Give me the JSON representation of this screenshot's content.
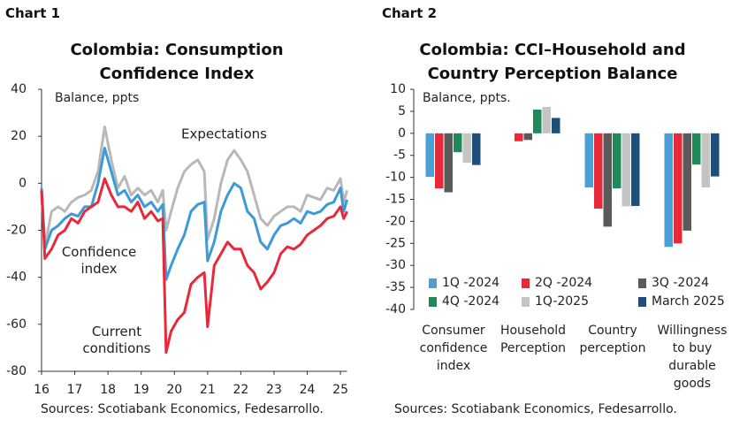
{
  "chart_data": [
    {
      "type": "line",
      "heading": "Chart 1",
      "title": "Colombia: Consumption Confidence Index",
      "y_label": "Balance, ppts",
      "source": "Sources: Scotiabank Economics, Fedesarrollo.",
      "x": [
        16.0,
        16.1,
        16.3,
        16.5,
        16.7,
        16.9,
        17.1,
        17.3,
        17.5,
        17.7,
        17.9,
        18.1,
        18.3,
        18.5,
        18.7,
        18.9,
        19.1,
        19.3,
        19.5,
        19.65,
        19.75,
        19.9,
        20.1,
        20.3,
        20.5,
        20.7,
        20.9,
        21.0,
        21.2,
        21.4,
        21.6,
        21.8,
        22.0,
        22.2,
        22.4,
        22.6,
        22.8,
        23.0,
        23.2,
        23.4,
        23.6,
        23.8,
        24.0,
        24.2,
        24.4,
        24.6,
        24.8,
        25.0,
        25.1,
        25.2
      ],
      "xlim": [
        16,
        25.2
      ],
      "xticks": [
        16,
        17,
        18,
        19,
        20,
        21,
        22,
        23,
        24,
        25
      ],
      "ylim": [
        -80,
        40
      ],
      "yticks": [
        -80,
        -60,
        -40,
        -20,
        0,
        20,
        40
      ],
      "series": [
        {
          "name": "Expectations",
          "color": "#b8b8b8",
          "values": [
            -2,
            -27,
            -12,
            -10,
            -12,
            -8,
            -6,
            -5,
            -3,
            5,
            24,
            10,
            -2,
            3,
            -5,
            -2,
            -5,
            -3,
            -8,
            -3,
            -20,
            -12,
            -2,
            5,
            8,
            10,
            5,
            -24,
            -15,
            0,
            10,
            14,
            10,
            5,
            -5,
            -15,
            -18,
            -14,
            -12,
            -10,
            -10,
            -12,
            -5,
            -6,
            -7,
            -2,
            -3,
            2,
            -8,
            -3
          ]
        },
        {
          "name": "Confidence index",
          "color": "#3d9ad6",
          "values": [
            -2,
            -28,
            -20,
            -18,
            -15,
            -13,
            -14,
            -10,
            -10,
            0,
            15,
            5,
            -5,
            -3,
            -8,
            -5,
            -10,
            -8,
            -12,
            -9,
            -41,
            -35,
            -28,
            -22,
            -12,
            -9,
            -8,
            -33,
            -25,
            -12,
            -5,
            0,
            -2,
            -12,
            -15,
            -25,
            -28,
            -22,
            -18,
            -17,
            -15,
            -17,
            -12,
            -13,
            -12,
            -9,
            -8,
            -2,
            -12,
            -7
          ]
        },
        {
          "name": "Current conditions",
          "color": "#e8293a",
          "values": [
            -3,
            -32,
            -28,
            -22,
            -20,
            -15,
            -17,
            -12,
            -10,
            -8,
            2,
            -5,
            -10,
            -10,
            -12,
            -8,
            -15,
            -12,
            -16,
            -15,
            -72,
            -63,
            -58,
            -55,
            -43,
            -40,
            -38,
            -61,
            -35,
            -30,
            -25,
            -28,
            -28,
            -35,
            -38,
            -45,
            -42,
            -38,
            -30,
            -27,
            -28,
            -26,
            -22,
            -20,
            -18,
            -15,
            -14,
            -10,
            -15,
            -12
          ]
        }
      ]
    },
    {
      "type": "bar",
      "heading": "Chart 2",
      "title": "Colombia: CCI–Household and Country Perception Balance",
      "y_label": "Balance, ppts.",
      "source": "Sources: Scotiabank Economics, Fedesarrollo.",
      "categories": [
        "Consumer confidence index",
        "Household Perception",
        "Country perception",
        "Willingness to buy durable goods"
      ],
      "ylim": [
        -40,
        10
      ],
      "yticks": [
        -40,
        -35,
        -30,
        -25,
        -20,
        -15,
        -10,
        -5,
        0,
        5,
        10
      ],
      "series": [
        {
          "name": "1Q -2024",
          "color": "#4a9fd5",
          "values": [
            -9.9,
            0,
            -12.3,
            -25.8
          ]
        },
        {
          "name": "2Q -2024",
          "color": "#e8293a",
          "values": [
            -12.5,
            -1.8,
            -17.1,
            -25.0
          ]
        },
        {
          "name": "3Q -2024",
          "color": "#5a5a5a",
          "values": [
            -13.4,
            -1.5,
            -21.2,
            -22.1
          ]
        },
        {
          "name": "4Q -2024",
          "color": "#1e8a5a",
          "values": [
            -4.3,
            5.4,
            -12.5,
            -7.1
          ]
        },
        {
          "name": "1Q-2025",
          "color": "#c4c4c4",
          "values": [
            -6.7,
            6.0,
            -16.6,
            -12.3
          ]
        },
        {
          "name": "March 2025",
          "color": "#1f4e79",
          "values": [
            -7.2,
            3.5,
            -16.5,
            -9.8
          ]
        }
      ]
    }
  ]
}
